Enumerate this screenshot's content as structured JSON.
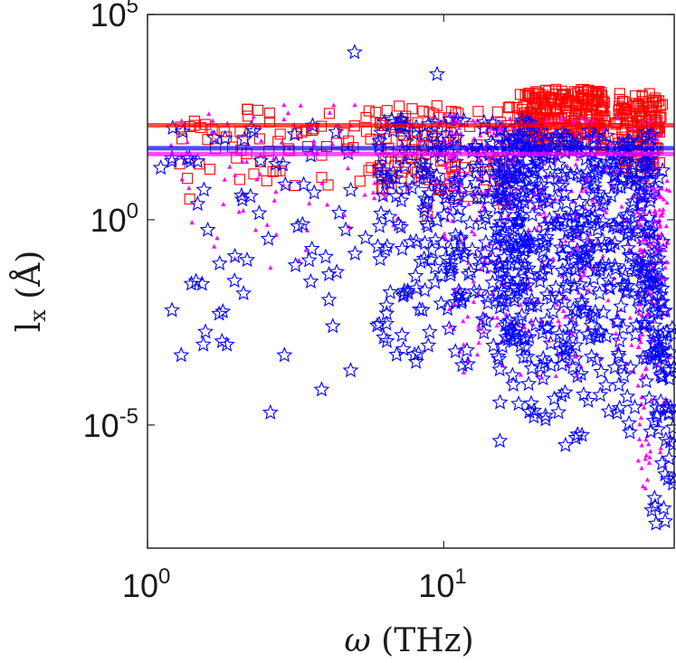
{
  "chart_data": {
    "type": "scatter",
    "title": "",
    "xlabel": {
      "symbol": "ω",
      "unit": "(THz)"
    },
    "ylabel": {
      "base": "l",
      "sub": "x",
      "unit": "(Å)"
    },
    "xscale": "log",
    "yscale": "log",
    "xlim": [
      1,
      60
    ],
    "ylim": [
      1e-08,
      100000
    ],
    "x_ticks": [
      {
        "base": "10",
        "exp": "0",
        "value": 1
      },
      {
        "base": "10",
        "exp": "1",
        "value": 10
      }
    ],
    "y_ticks": [
      {
        "base": "10",
        "exp": "5",
        "value": 100000
      },
      {
        "base": "10",
        "exp": "0",
        "value": 1
      },
      {
        "base": "10",
        "exp": "-5",
        "value": 1e-05
      }
    ],
    "grid": false,
    "legend": "none",
    "series": [
      {
        "name": "squares",
        "marker": "square",
        "color": "#ff0000",
        "median_line": 200,
        "clusters": [
          {
            "x": [
              1.2,
              10
            ],
            "y": [
              3,
              500
            ],
            "n": 90,
            "seed": 11
          },
          {
            "x": [
              6,
              18
            ],
            "y": [
              1,
              600
            ],
            "n": 110,
            "seed": 12
          },
          {
            "x": [
              18,
              35
            ],
            "y": [
              40,
              1500
            ],
            "n": 260,
            "seed": 13
          },
          {
            "x": [
              38,
              55
            ],
            "y": [
              8,
              1200
            ],
            "n": 140,
            "seed": 14
          }
        ]
      },
      {
        "name": "triangles",
        "marker": "triangle",
        "color": "#ff00ff",
        "median_line": 40,
        "clusters": [
          {
            "x": [
              1.2,
              12
            ],
            "y": [
              0.05,
              800
            ],
            "n": 90,
            "seed": 21
          },
          {
            "x": [
              10,
              55
            ],
            "y": [
              0.0001,
              300
            ],
            "n": 520,
            "seed": 22
          },
          {
            "x": [
              45,
              58
            ],
            "y": [
              1e-07,
              10
            ],
            "n": 150,
            "seed": 23
          }
        ]
      },
      {
        "name": "stars",
        "marker": "star",
        "color": "#0000ff",
        "median_line": 55,
        "clusters": [
          {
            "x": [
              1.1,
              9
            ],
            "y": [
              2e-05,
              200
            ],
            "n": 80,
            "seed": 31
          },
          {
            "x": [
              6,
              20
            ],
            "y": [
              0.0001,
              300
            ],
            "n": 260,
            "seed": 32
          },
          {
            "x": [
              15,
              55
            ],
            "y": [
              2e-06,
              150
            ],
            "n": 520,
            "seed": 33
          },
          {
            "x": [
              50,
              60
            ],
            "y": [
              1e-08,
              0.01
            ],
            "n": 60,
            "seed": 34
          }
        ],
        "outliers": [
          {
            "x": 5.0,
            "y": 12000
          },
          {
            "x": 9.5,
            "y": 3500
          },
          {
            "x": 1.3,
            "y": 0.0005
          },
          {
            "x": 2.6,
            "y": 2e-05
          },
          {
            "x": 2.9,
            "y": 0.0005
          }
        ]
      }
    ]
  }
}
